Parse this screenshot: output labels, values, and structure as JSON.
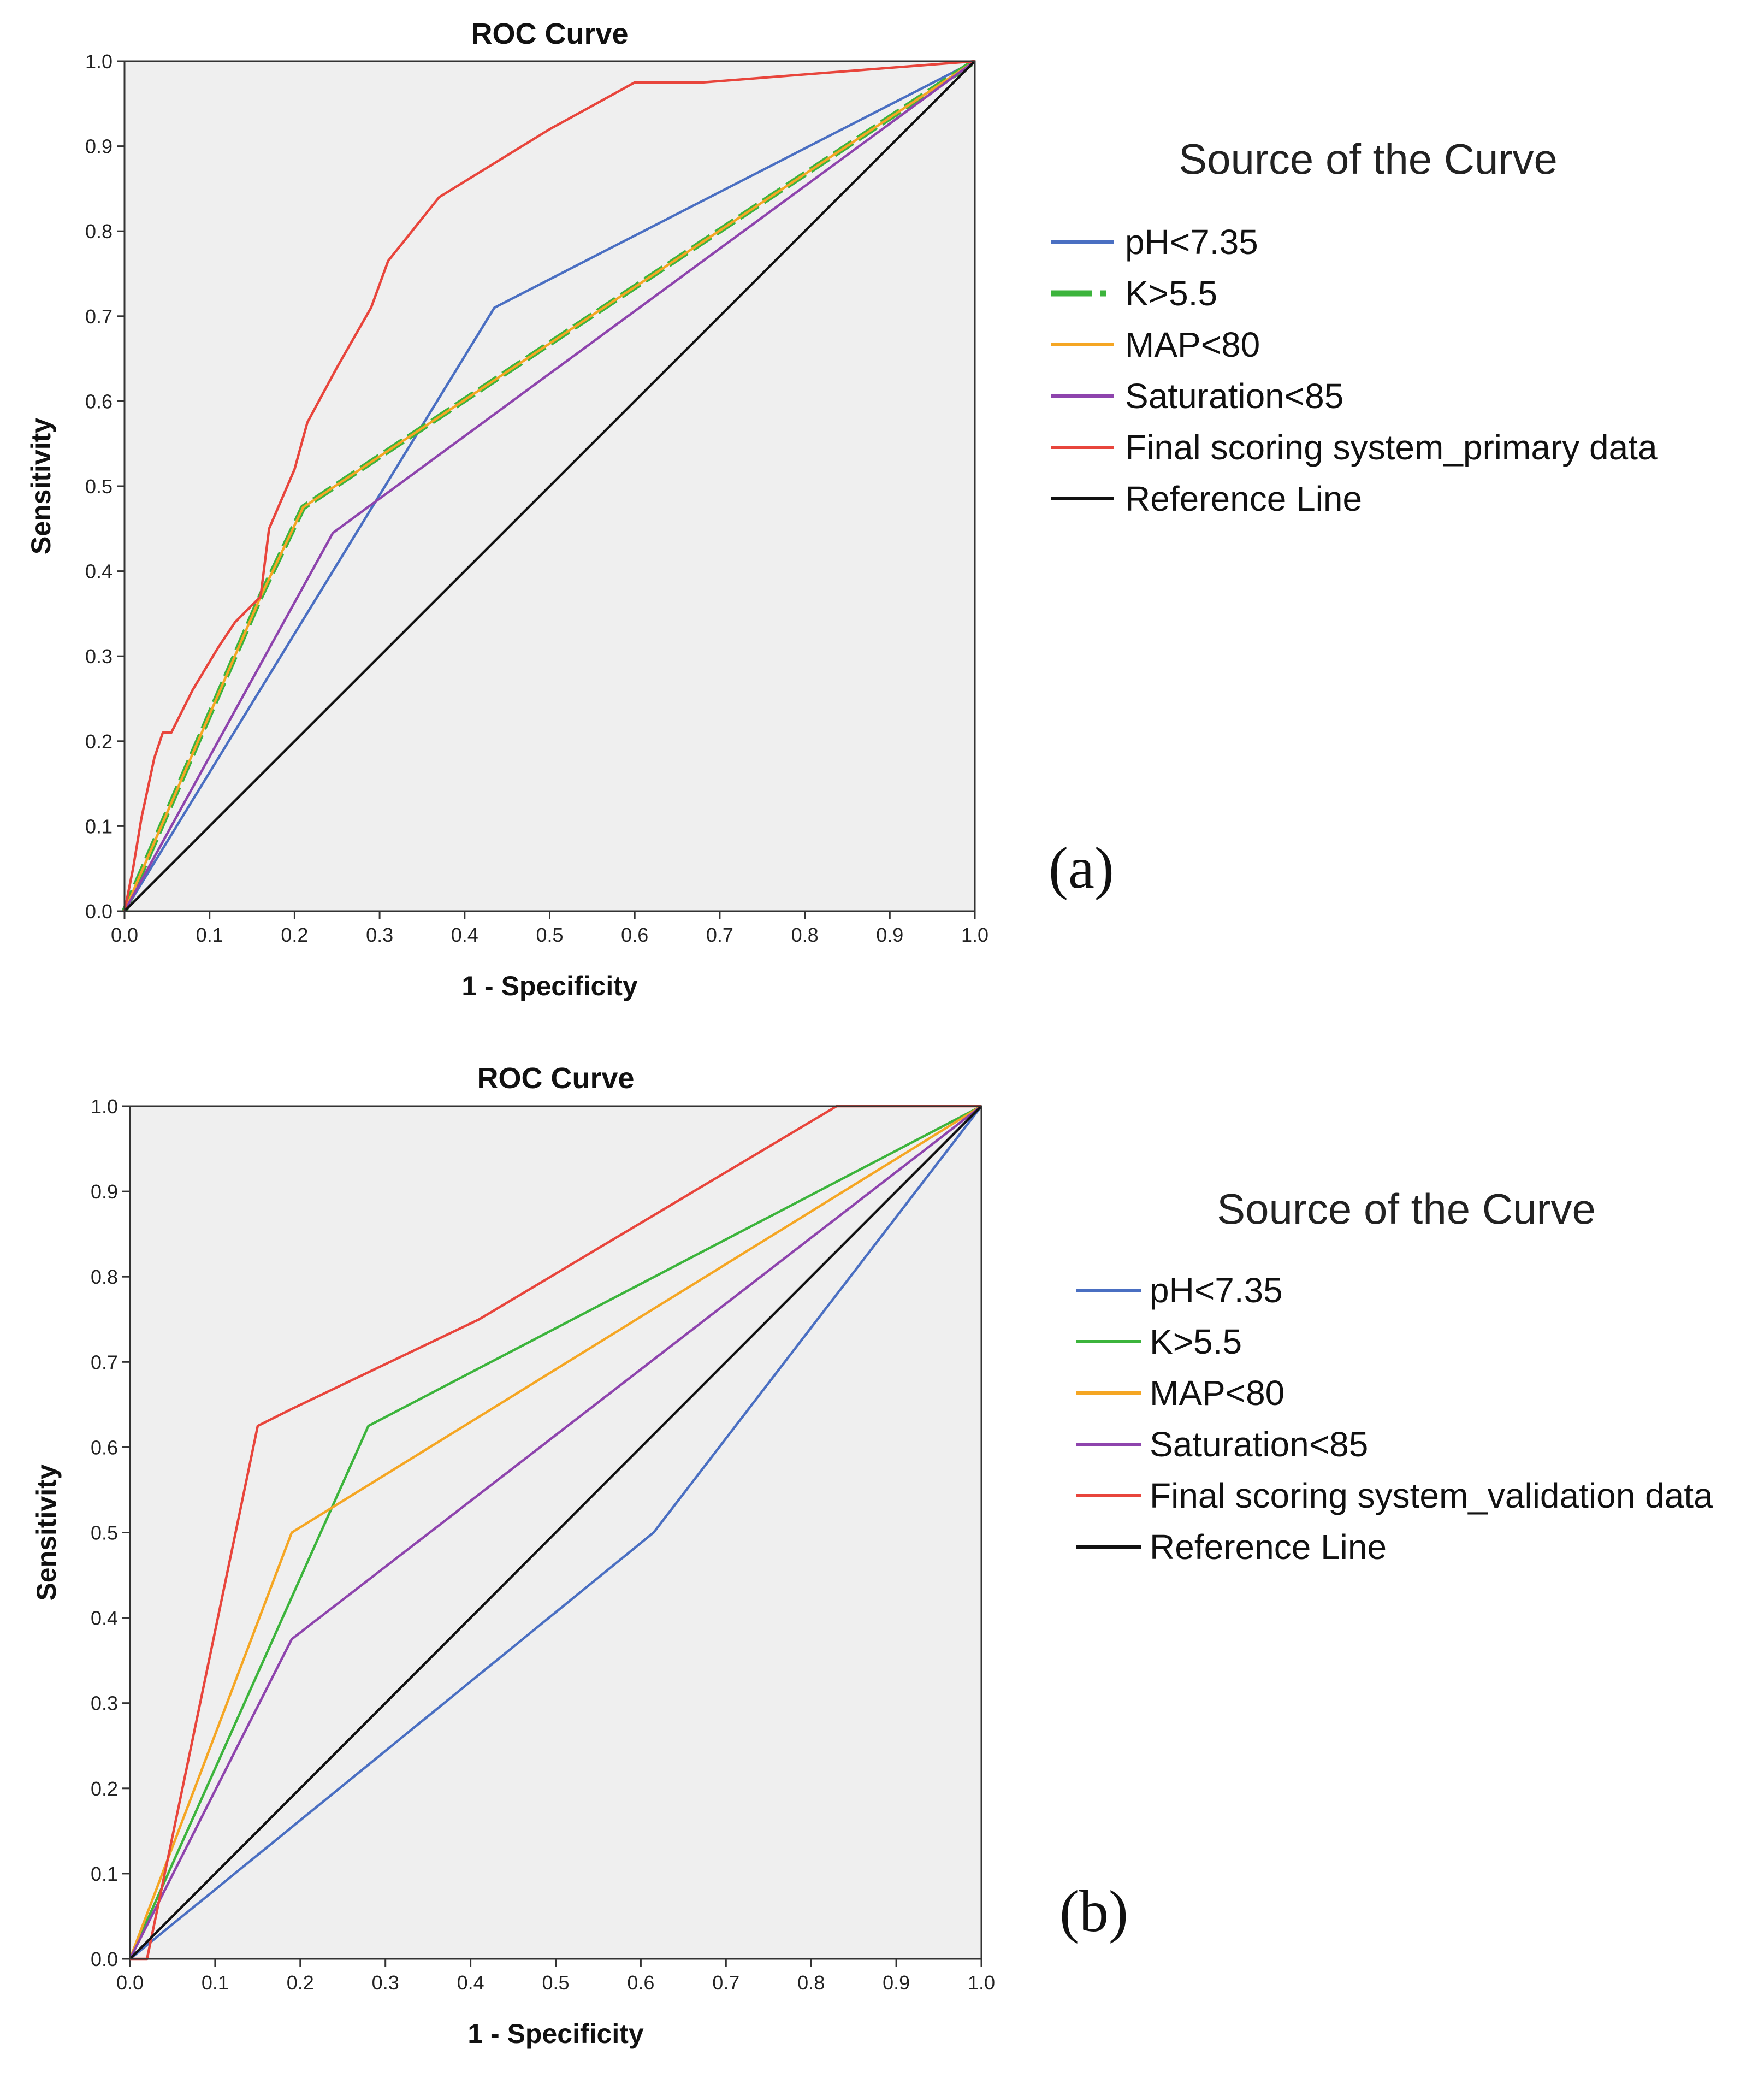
{
  "chart_data": [
    {
      "type": "line",
      "title": "ROC Curve",
      "xlabel": "1 - Specificity",
      "ylabel": "Sensitivity",
      "xlim": [
        0,
        1
      ],
      "ylim": [
        0,
        1
      ],
      "xticks": [
        "0.0",
        "0.1",
        "0.2",
        "0.3",
        "0.4",
        "0.5",
        "0.6",
        "0.7",
        "0.8",
        "0.9",
        "1.0"
      ],
      "yticks": [
        "0.0",
        "0.1",
        "0.2",
        "0.3",
        "0.4",
        "0.5",
        "0.6",
        "0.7",
        "0.8",
        "0.9",
        "1.0"
      ],
      "legend_title": "Source of the Curve",
      "legend_position": "right",
      "panel_label": "(a)",
      "series": [
        {
          "name": "pH<7.35",
          "color": "#4a6fc2",
          "points": [
            [
              0,
              0
            ],
            [
              0.435,
              0.71
            ],
            [
              1,
              1
            ]
          ]
        },
        {
          "name": "K>5.5",
          "color": "#3cb43c",
          "dashed": true,
          "points": [
            [
              0,
              0
            ],
            [
              0.16,
              0.37
            ],
            [
              0.21,
              0.475
            ],
            [
              0.3,
              0.535
            ],
            [
              1,
              1
            ]
          ]
        },
        {
          "name": "MAP<80",
          "color": "#f5a623",
          "points": [
            [
              0,
              0
            ],
            [
              0.16,
              0.37
            ],
            [
              0.21,
              0.475
            ],
            [
              0.3,
              0.535
            ],
            [
              1,
              1
            ]
          ]
        },
        {
          "name": "Saturation<85",
          "color": "#8e44ad",
          "points": [
            [
              0,
              0
            ],
            [
              0.245,
              0.445
            ],
            [
              1,
              1
            ]
          ]
        },
        {
          "name": "Final scoring system_primary data",
          "color": "#e8453c",
          "points": [
            [
              0,
              0
            ],
            [
              0.01,
              0.05
            ],
            [
              0.02,
              0.11
            ],
            [
              0.035,
              0.18
            ],
            [
              0.045,
              0.21
            ],
            [
              0.055,
              0.21
            ],
            [
              0.08,
              0.26
            ],
            [
              0.11,
              0.31
            ],
            [
              0.13,
              0.34
            ],
            [
              0.16,
              0.37
            ],
            [
              0.17,
              0.45
            ],
            [
              0.2,
              0.52
            ],
            [
              0.215,
              0.575
            ],
            [
              0.25,
              0.64
            ],
            [
              0.29,
              0.71
            ],
            [
              0.31,
              0.765
            ],
            [
              0.37,
              0.84
            ],
            [
              0.5,
              0.92
            ],
            [
              0.6,
              0.975
            ],
            [
              0.68,
              0.975
            ],
            [
              1,
              1
            ]
          ]
        },
        {
          "name": "Reference Line",
          "color": "#111111",
          "points": [
            [
              0,
              0
            ],
            [
              1,
              1
            ]
          ]
        }
      ]
    },
    {
      "type": "line",
      "title": "ROC Curve",
      "xlabel": "1 - Specificity",
      "ylabel": "Sensitivity",
      "xlim": [
        0,
        1
      ],
      "ylim": [
        0,
        1
      ],
      "xticks": [
        "0.0",
        "0.1",
        "0.2",
        "0.3",
        "0.4",
        "0.5",
        "0.6",
        "0.7",
        "0.8",
        "0.9",
        "1.0"
      ],
      "yticks": [
        "0.0",
        "0.1",
        "0.2",
        "0.3",
        "0.4",
        "0.5",
        "0.6",
        "0.7",
        "0.8",
        "0.9",
        "1.0"
      ],
      "legend_title": "Source of the Curve",
      "legend_position": "right",
      "panel_label": "(b)",
      "series": [
        {
          "name": "pH<7.35",
          "color": "#4a6fc2",
          "points": [
            [
              0,
              0
            ],
            [
              0.615,
              0.5
            ],
            [
              1,
              1
            ]
          ]
        },
        {
          "name": "K>5.5",
          "color": "#3cb43c",
          "points": [
            [
              0,
              0
            ],
            [
              0.28,
              0.625
            ],
            [
              1,
              1
            ]
          ]
        },
        {
          "name": "MAP<80",
          "color": "#f5a623",
          "points": [
            [
              0,
              0
            ],
            [
              0.19,
              0.5
            ],
            [
              1,
              1
            ]
          ]
        },
        {
          "name": "Saturation<85",
          "color": "#8e44ad",
          "points": [
            [
              0,
              0
            ],
            [
              0.19,
              0.375
            ],
            [
              1,
              1
            ]
          ]
        },
        {
          "name": "Final scoring system_validation data",
          "color": "#e8453c",
          "points": [
            [
              0,
              0
            ],
            [
              0.02,
              0
            ],
            [
              0.15,
              0.625
            ],
            [
              0.19,
              0.645
            ],
            [
              0.41,
              0.75
            ],
            [
              0.83,
              1
            ],
            [
              1,
              1
            ]
          ]
        },
        {
          "name": "Reference Line",
          "color": "#111111",
          "points": [
            [
              0,
              0
            ],
            [
              1,
              1
            ]
          ]
        }
      ]
    }
  ]
}
